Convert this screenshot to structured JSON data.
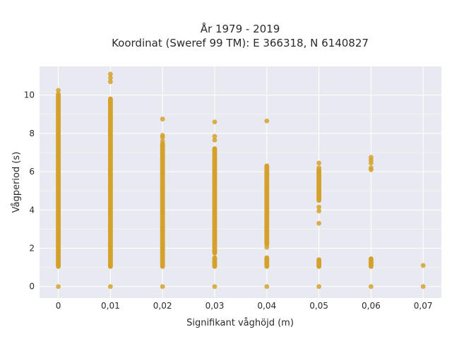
{
  "chart_data": {
    "type": "scatter",
    "title_lines": [
      "År 1979 - 2019",
      "Koordinat (Sweref 99 TM): E 366318, N 6140827"
    ],
    "xlabel": "Signifikant våghöjd (m)",
    "ylabel": "Vågperiod (s)",
    "x_ticks": [
      0,
      0.01,
      0.02,
      0.03,
      0.04,
      0.05,
      0.06,
      0.07
    ],
    "x_tick_labels": [
      "0",
      "0,01",
      "0,02",
      "0,03",
      "0,04",
      "0,05",
      "0,06",
      "0,07"
    ],
    "y_ticks": [
      0,
      2,
      4,
      6,
      8,
      10
    ],
    "y_tick_labels": [
      "0",
      "2",
      "4",
      "6",
      "8",
      "10"
    ],
    "xlim": [
      -0.0036,
      0.0735
    ],
    "ylim": [
      -0.6,
      11.5
    ],
    "grid": true,
    "point_color": "#d4a22a",
    "plot_background": "#e9e9f2",
    "columns": [
      {
        "x": 0.0,
        "ranges": [
          [
            1.05,
            10.0
          ]
        ],
        "points": [
          0,
          10.05,
          10.25
        ]
      },
      {
        "x": 0.01,
        "ranges": [
          [
            1.05,
            9.8
          ]
        ],
        "points": [
          0,
          10.7,
          10.9,
          11.1
        ]
      },
      {
        "x": 0.02,
        "ranges": [
          [
            1.05,
            7.45
          ]
        ],
        "points": [
          0,
          7.6,
          7.8,
          7.9,
          8.75
        ]
      },
      {
        "x": 0.03,
        "ranges": [
          [
            1.75,
            7.2
          ],
          [
            1.05,
            1.5
          ]
        ],
        "points": [
          0,
          7.65,
          7.85,
          8.6
        ]
      },
      {
        "x": 0.04,
        "ranges": [
          [
            2.2,
            6.3
          ],
          [
            1.05,
            1.5
          ]
        ],
        "points": [
          0,
          2.05,
          8.65
        ]
      },
      {
        "x": 0.05,
        "ranges": [
          [
            4.5,
            6.1
          ],
          [
            1.05,
            1.4
          ]
        ],
        "points": [
          0,
          3.3,
          3.95,
          4.15,
          6.2,
          6.45
        ]
      },
      {
        "x": 0.06,
        "ranges": [
          [
            1.05,
            1.45
          ]
        ],
        "points": [
          0,
          6.1,
          6.2,
          6.45,
          6.6,
          6.75
        ]
      },
      {
        "x": 0.07,
        "ranges": [],
        "points": [
          0,
          1.1
        ]
      }
    ]
  }
}
